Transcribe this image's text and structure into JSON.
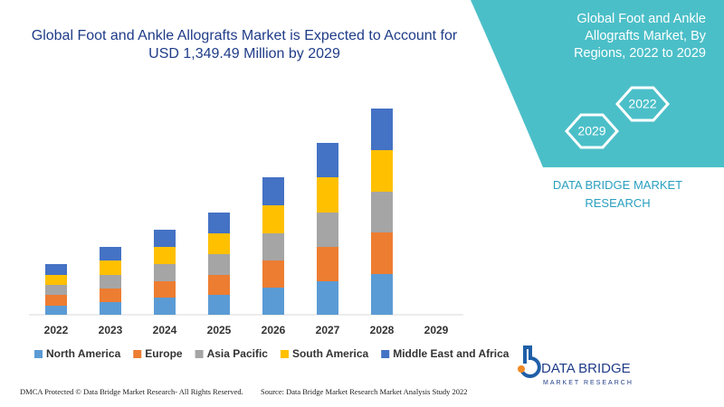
{
  "chart_data": {
    "type": "bar",
    "stacked": true,
    "title": "Global Foot and Ankle Allografts Market is Expected to Account for USD 1,349.49 Million by 2029",
    "categories": [
      "2022",
      "2023",
      "2024",
      "2025",
      "2026",
      "2027",
      "2028",
      "2029"
    ],
    "series": [
      {
        "name": "North America",
        "color": "#5b9bd5",
        "values": [
          10,
          14,
          19,
          22,
          30,
          37,
          45,
          null
        ]
      },
      {
        "name": "Europe",
        "color": "#ed7d31",
        "values": [
          12,
          15,
          18,
          22,
          30,
          38,
          46,
          null
        ]
      },
      {
        "name": "Asia Pacific",
        "color": "#a5a5a5",
        "values": [
          11,
          15,
          19,
          23,
          30,
          38,
          45,
          null
        ]
      },
      {
        "name": "South America",
        "color": "#ffc000",
        "values": [
          11,
          16,
          19,
          23,
          31,
          39,
          46,
          null
        ]
      },
      {
        "name": "Middle East and Africa",
        "color": "#4472c4",
        "values": [
          12,
          15,
          19,
          23,
          31,
          38,
          46,
          null
        ]
      }
    ],
    "ylim": [
      0,
      250
    ]
  },
  "panel": {
    "title": "Global Foot and Ankle Allografts Market, By Regions, 2022 to 2029",
    "hex_labels": [
      "2022",
      "2029"
    ],
    "brand": "DATA BRIDGE MARKET RESEARCH"
  },
  "logo": {
    "name": "DATA BRIDGE",
    "tagline": "MARKET RESEARCH"
  },
  "footer": {
    "left": "DMCA Protected © Data Bridge Market Research- All Rights Reserved.",
    "right": "Source: Data Bridge Market Research Market Analysis Study 2022"
  }
}
